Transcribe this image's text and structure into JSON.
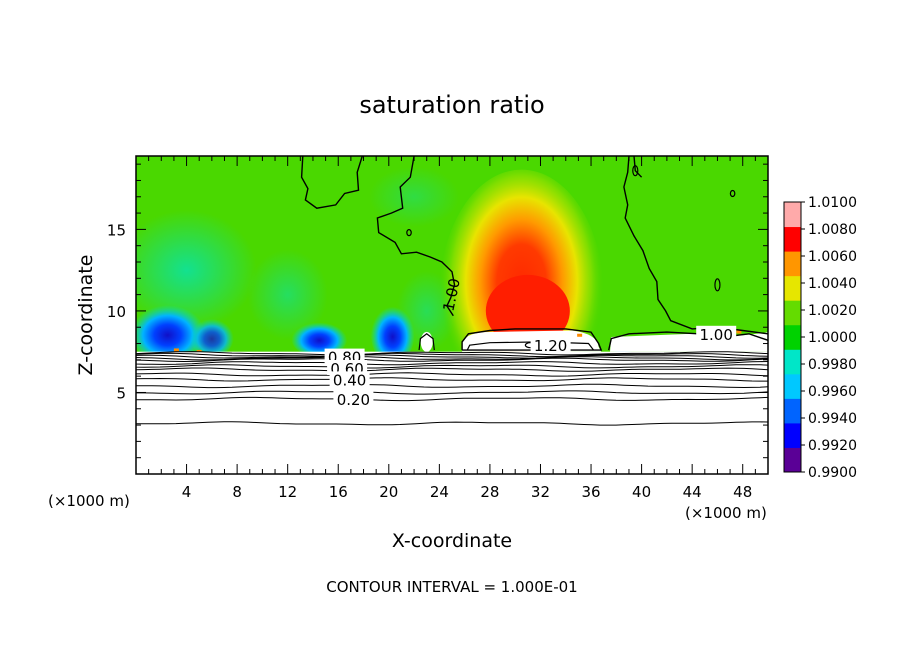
{
  "chart_data": {
    "type": "heatmap",
    "title": "saturation ratio",
    "xlabel": "X-coordinate",
    "ylabel": "Z-coordinate",
    "x_unit_label_left": "(×1000 m)",
    "x_unit_label_right": "(×1000 m)",
    "xlim": [
      0,
      50
    ],
    "ylim": [
      0,
      19.5
    ],
    "x_ticks": [
      4,
      8,
      12,
      16,
      20,
      24,
      28,
      32,
      36,
      40,
      44,
      48
    ],
    "y_ticks": [
      5,
      10,
      15
    ],
    "colorbar": {
      "min": 0.99,
      "max": 1.01,
      "tick_labels": [
        "1.0100",
        "1.0080",
        "1.0060",
        "1.0040",
        "1.0020",
        "1.0000",
        "0.9980",
        "0.9960",
        "0.9940",
        "0.9920",
        "0.9900"
      ],
      "colors": [
        "#5a0096",
        "#0000ff",
        "#0064ff",
        "#00c8ff",
        "#00e6c8",
        "#00d200",
        "#64dc00",
        "#e6e600",
        "#ff9600",
        "#ff0000",
        "#ffaaaa"
      ]
    },
    "contour_interval_text": "CONTOUR INTERVAL = 1.000E-01",
    "contour_labels": [
      {
        "text": "1.00",
        "x": 24.9,
        "z": 11.0,
        "rotate": -78
      },
      {
        "text": "1.00",
        "x": 45.9,
        "z": 8.6,
        "rotate": 0
      },
      {
        "text": "1.20",
        "x": 32.8,
        "z": 7.9,
        "rotate": 0
      },
      {
        "text": "0.80",
        "x": 16.5,
        "z": 7.2,
        "rotate": 0
      },
      {
        "text": "0.60",
        "x": 16.7,
        "z": 6.5,
        "rotate": 0
      },
      {
        "text": "0.40",
        "x": 16.9,
        "z": 5.8,
        "rotate": 0
      },
      {
        "text": "0.20",
        "x": 17.2,
        "z": 4.6,
        "rotate": 0
      }
    ],
    "field": {
      "background_value": 1.0003,
      "cloud_base_z": 7.5,
      "features": [
        {
          "kind": "supersaturated-plume",
          "x_center": 30.5,
          "z_center": 10.5,
          "x_halfwidth": 6,
          "z_halfwidth": 6,
          "peak": 1.0075
        },
        {
          "kind": "subsaturated-blob",
          "x_center": 2.5,
          "z_center": 8.7,
          "peak": 0.9922
        },
        {
          "kind": "subsaturated-blob",
          "x_center": 14.5,
          "z_center": 8.4,
          "peak": 0.9935
        },
        {
          "kind": "subsaturated-blob",
          "x_center": 20.3,
          "z_center": 8.6,
          "peak": 0.9935
        },
        {
          "kind": "moist-band",
          "x_range": [
            0,
            14
          ],
          "z_center": 13,
          "peak": 0.9968
        }
      ],
      "dry_layer_contours_z": [
        7.4,
        7.3,
        7.2,
        7.1,
        7.0,
        6.8,
        6.6,
        6.4,
        6.1,
        5.8,
        5.4,
        5.0,
        4.6,
        3.1
      ]
    }
  }
}
